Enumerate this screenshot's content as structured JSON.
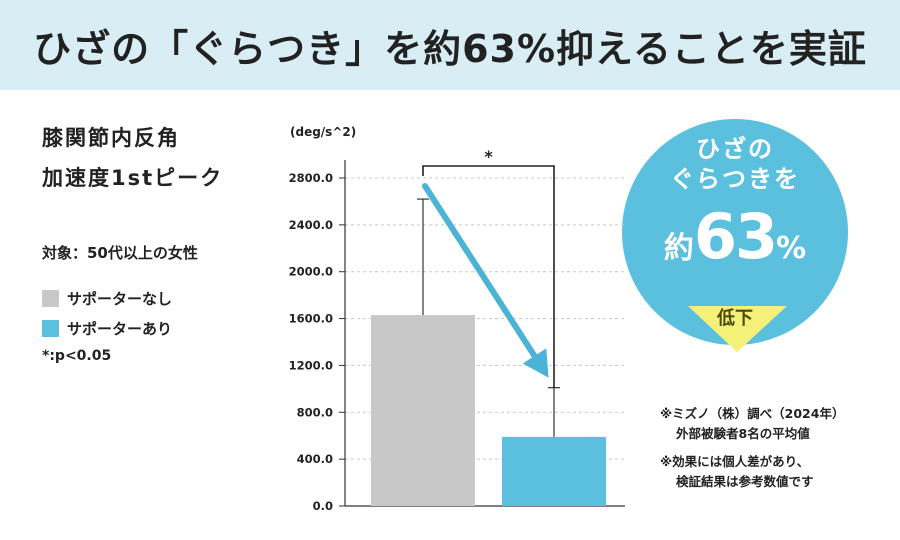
{
  "header": {
    "title": "ひざの「ぐらつき」を約63%抑えることを実証"
  },
  "metric": {
    "line1": "膝関節内反角",
    "line2": "加速度1stピーク"
  },
  "subject": "対象：50代以上の女性",
  "legend": [
    {
      "label": "サポーターなし",
      "color": "#c8c8c8"
    },
    {
      "label": "サポーターあり",
      "color": "#5bc0de"
    }
  ],
  "significance_note": "*:p<0.05",
  "badge": {
    "line1": "ひざの",
    "line2": "ぐらつきを",
    "prefix": "約",
    "value": "63",
    "unit": "%",
    "drop_label": "低下",
    "circle_color": "#5bc0de",
    "arrow_color": "#f5f07a"
  },
  "notes": {
    "source_line1": "※ミズノ（株）調べ（2024年）",
    "source_line2": "外部被験者8名の平均値",
    "disclaimer_line1": "※効果には個人差があり、",
    "disclaimer_line2": "検証結果は参考数値です"
  },
  "chart_data": {
    "type": "bar",
    "title": "",
    "unit_label": "(deg/s^2)",
    "ylabel": "",
    "xlabel": "",
    "ylim": [
      0,
      2800
    ],
    "yticks": [
      0,
      400,
      800,
      1200,
      1600,
      2000,
      2400,
      2800
    ],
    "ytick_labels": [
      "0.0",
      "400.0",
      "800.0",
      "1200.0",
      "1600.0",
      "2000.0",
      "2400.0",
      "2800.0"
    ],
    "grid": true,
    "categories": [
      "サポーターなし",
      "サポーターあり"
    ],
    "values": [
      1630,
      590
    ],
    "error_upper": [
      2620,
      1010
    ],
    "colors": [
      "#c8c8c8",
      "#5bc0de"
    ],
    "significance_marker": "*",
    "trend_arrow_color": "#4ab3d6"
  }
}
